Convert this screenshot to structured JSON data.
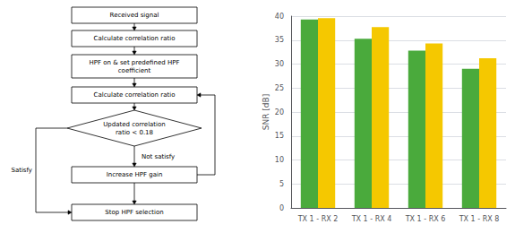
{
  "chart_data": [
    {
      "type": "flowchart",
      "boxes": [
        "Received signal",
        "Calculate correlation ratio",
        "HPF on & set predefined HPF\ncoefficient",
        "Calculate correlation ratio",
        "Increase HPF gain",
        "Stop HPF selection"
      ],
      "decision": "Updated correlation\nratio < 0.18",
      "annotations": [
        "Satisfy",
        "Not satisfy"
      ]
    },
    {
      "type": "bar",
      "categories": [
        "TX 1 - RX 2",
        "TX 1 - RX 4",
        "TX 1 - RX 6",
        "TX 1 - RX 8"
      ],
      "series": [
        {
          "color": "#4aaa3c",
          "values": [
            39.3,
            35.3,
            32.8,
            29.0
          ]
        },
        {
          "color": "#f5c800",
          "values": [
            39.6,
            37.7,
            34.3,
            31.2
          ]
        }
      ],
      "ylabel": "SNR [dB]",
      "ylim": [
        0,
        40
      ],
      "yticks": [
        0,
        5,
        10,
        15,
        20,
        25,
        30,
        35,
        40
      ],
      "grid": true
    }
  ]
}
